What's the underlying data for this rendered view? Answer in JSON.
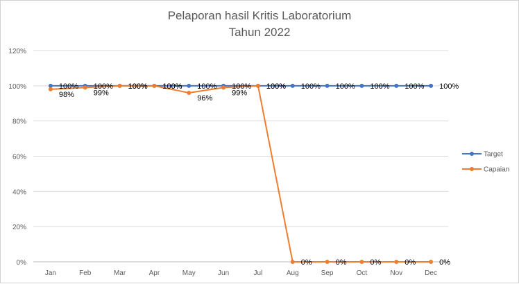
{
  "chart_data": {
    "type": "line",
    "title": [
      "Pelaporan hasil Kritis Laboratorium",
      "Tahun 2022"
    ],
    "categories": [
      "Jan",
      "Feb",
      "Mar",
      "Apr",
      "May",
      "Jun",
      "Jul",
      "Aug",
      "Sep",
      "Oct",
      "Nov",
      "Dec"
    ],
    "ylim": [
      0,
      120
    ],
    "yticks": [
      0,
      20,
      40,
      60,
      80,
      100,
      120
    ],
    "ytick_labels": [
      "0%",
      "20%",
      "40%",
      "60%",
      "80%",
      "100%",
      "120%"
    ],
    "xlabel": "",
    "ylabel": "",
    "grid": true,
    "legend_position": "right",
    "series": [
      {
        "name": "Target",
        "color": "#4472C4",
        "values": [
          100,
          100,
          100,
          100,
          100,
          100,
          100,
          100,
          100,
          100,
          100,
          100
        ],
        "labels": [
          "100%",
          "100%",
          "100%",
          "100%",
          "100%",
          "100%",
          "100%",
          "100%",
          "100%",
          "100%",
          "100%",
          "100%"
        ]
      },
      {
        "name": "Capaian",
        "color": "#ED7D31",
        "values": [
          98,
          99,
          100,
          100,
          96,
          99,
          100,
          0,
          0,
          0,
          0,
          0
        ],
        "labels": [
          "98%",
          "99%",
          "100%",
          "100%",
          "96%",
          "99%",
          "100%",
          "0%",
          "0%",
          "0%",
          "0%",
          "0%"
        ]
      }
    ]
  }
}
